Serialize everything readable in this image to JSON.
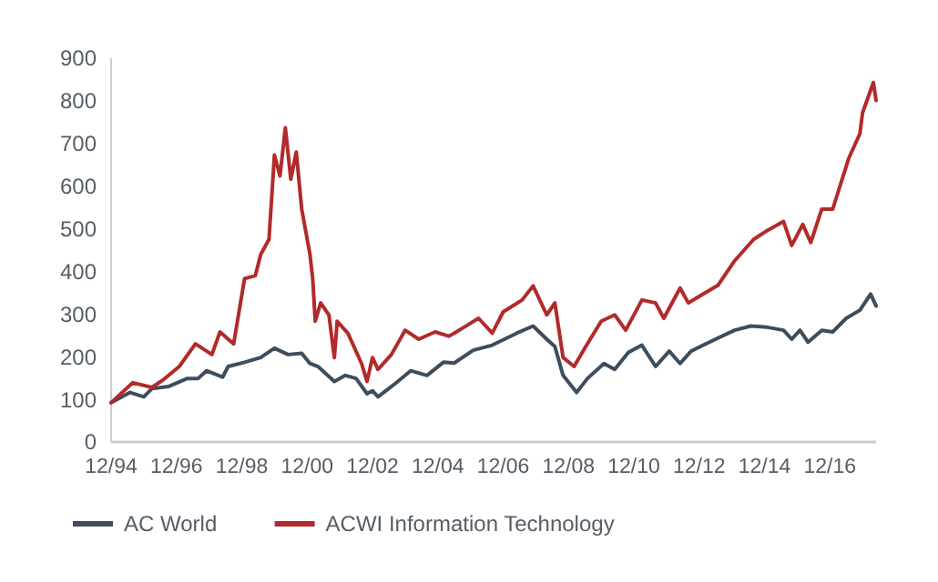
{
  "chart_data": {
    "type": "line",
    "xlim": [
      "1994-12",
      "2018-05"
    ],
    "xticks": [
      {
        "value": "1994-12",
        "label": "12/94"
      },
      {
        "value": "1996-12",
        "label": "12/96"
      },
      {
        "value": "1998-12",
        "label": "12/98"
      },
      {
        "value": "2000-12",
        "label": "12/00"
      },
      {
        "value": "2002-12",
        "label": "12/02"
      },
      {
        "value": "2004-12",
        "label": "12/04"
      },
      {
        "value": "2006-12",
        "label": "12/06"
      },
      {
        "value": "2008-12",
        "label": "12/08"
      },
      {
        "value": "2010-12",
        "label": "12/10"
      },
      {
        "value": "2012-12",
        "label": "12/12"
      },
      {
        "value": "2014-12",
        "label": "12/14"
      },
      {
        "value": "2016-12",
        "label": "12/16"
      }
    ],
    "ylim": [
      0,
      900
    ],
    "yticks": [
      0,
      100,
      200,
      300,
      400,
      500,
      600,
      700,
      800,
      900
    ],
    "grid": false,
    "legend": "bottom",
    "marker": "none",
    "line_style": "solid",
    "series": [
      {
        "name": "AC World",
        "color": "#3d4d5c",
        "x": [
          "1994-12",
          "1995-07",
          "1995-12",
          "1996-03",
          "1996-09",
          "1997-04",
          "1997-08",
          "1997-11",
          "1998-05",
          "1998-07",
          "1999-01",
          "1999-07",
          "1999-12",
          "2000-05",
          "2000-10",
          "2001-01",
          "2001-04",
          "2001-10",
          "2002-02",
          "2002-06",
          "2002-10",
          "2002-12",
          "2003-02",
          "2003-08",
          "2004-02",
          "2004-08",
          "2005-02",
          "2005-06",
          "2006-01",
          "2006-08",
          "2007-05",
          "2007-11",
          "2008-04",
          "2008-07",
          "2008-10",
          "2009-03",
          "2009-07",
          "2010-01",
          "2010-05",
          "2010-10",
          "2011-03",
          "2011-08",
          "2012-01",
          "2012-05",
          "2012-09",
          "2013-06",
          "2014-01",
          "2014-07",
          "2015-01",
          "2015-07",
          "2015-10",
          "2016-01",
          "2016-04",
          "2016-09",
          "2017-01",
          "2017-06",
          "2017-11",
          "2018-03",
          "2018-05"
        ],
        "values": [
          92,
          116,
          106,
          125,
          130,
          149,
          149,
          167,
          152,
          177,
          187,
          198,
          220,
          205,
          208,
          184,
          177,
          142,
          156,
          149,
          113,
          120,
          106,
          135,
          167,
          156,
          187,
          185,
          215,
          227,
          255,
          272,
          241,
          224,
          156,
          116,
          149,
          184,
          170,
          210,
          227,
          177,
          213,
          184,
          213,
          241,
          262,
          272,
          269,
          262,
          241,
          262,
          234,
          262,
          258,
          290,
          309,
          347,
          319
        ]
      },
      {
        "name": "ACWI Information Technology",
        "color": "#b22a2a",
        "x": [
          "1994-12",
          "1995-08",
          "1996-03",
          "1996-07",
          "1997-01",
          "1997-07",
          "1998-01",
          "1998-04",
          "1998-09",
          "1999-01",
          "1999-05",
          "1999-07",
          "1999-10",
          "1999-12",
          "2000-02",
          "2000-04",
          "2000-06",
          "2000-08",
          "2000-10",
          "2001-01",
          "2001-02",
          "2001-03",
          "2001-05",
          "2001-08",
          "2001-10",
          "2001-11",
          "2002-03",
          "2002-08",
          "2002-10",
          "2002-12",
          "2003-02",
          "2003-07",
          "2003-12",
          "2004-05",
          "2004-11",
          "2005-04",
          "2005-06",
          "2006-03",
          "2006-08",
          "2006-12",
          "2007-07",
          "2007-11",
          "2008-04",
          "2008-07",
          "2008-10",
          "2009-02",
          "2009-06",
          "2009-12",
          "2010-05",
          "2010-09",
          "2011-03",
          "2011-08",
          "2011-11",
          "2012-05",
          "2012-08",
          "2013-07",
          "2014-01",
          "2014-08",
          "2015-01",
          "2015-07",
          "2015-10",
          "2016-02",
          "2016-05",
          "2016-09",
          "2017-01",
          "2017-07",
          "2017-11",
          "2017-12",
          "2018-04",
          "2018-05"
        ],
        "values": [
          92,
          139,
          128,
          145,
          177,
          230,
          205,
          258,
          230,
          383,
          390,
          440,
          475,
          673,
          624,
          737,
          616,
          680,
          546,
          440,
          383,
          283,
          326,
          298,
          198,
          283,
          255,
          184,
          142,
          198,
          170,
          205,
          262,
          241,
          258,
          248,
          255,
          290,
          255,
          305,
          333,
          366,
          298,
          326,
          198,
          177,
          220,
          283,
          298,
          262,
          333,
          326,
          290,
          361,
          326,
          368,
          425,
          475,
          496,
          517,
          461,
          510,
          468,
          546,
          546,
          666,
          723,
          772,
          843,
          801
        ]
      }
    ]
  }
}
